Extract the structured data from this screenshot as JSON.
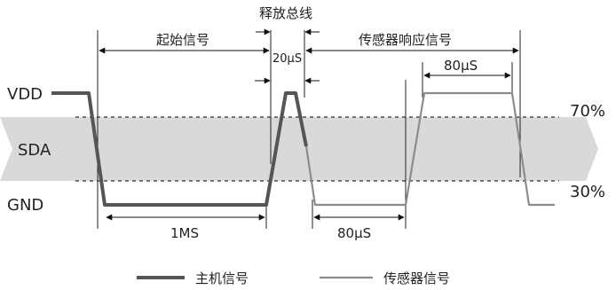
{
  "levels": {
    "vdd": "VDD",
    "sda": "SDA",
    "gnd": "GND",
    "high_pct": "70%",
    "low_pct": "30%"
  },
  "phases": {
    "start": "起始信号",
    "release": "释放总线",
    "response": "传感器响应信号"
  },
  "timings": {
    "t1": "1MS",
    "t2": "20μS",
    "t3": "80μS",
    "t4": "80μS"
  },
  "legend": {
    "host": "主机信号",
    "sensor": "传感器信号"
  },
  "colors": {
    "band": "#d9d9d9",
    "host_line": "#555555",
    "sensor_line": "#8c8c8c",
    "dash": "#333333"
  }
}
